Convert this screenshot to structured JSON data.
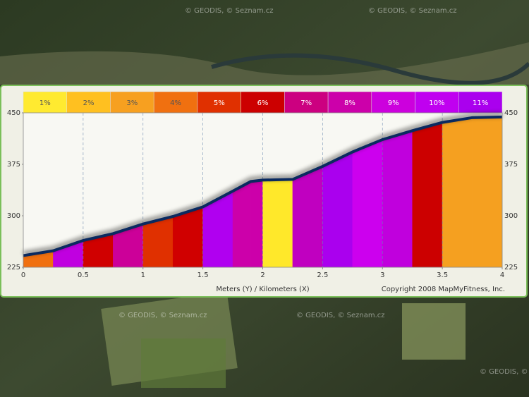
{
  "map": {
    "watermarks": [
      "© GEODIS, © Seznam.cz",
      "© GEODIS, © Seznam.cz",
      "© GEODIS, © Seznam.cz",
      "© GEODIS, © Seznam.cz",
      "© GEODIS, © Seznam.cz"
    ]
  },
  "chart_data": {
    "type": "profile",
    "x_label": "Meters (Y) / Kilometers (X)",
    "copyright": "Copyright 2008 MapMyFitness, Inc.",
    "grade_legend": {
      "labels": [
        "1%",
        "2%",
        "3%",
        "4%",
        "5%",
        "6%",
        "7%",
        "8%",
        "9%",
        "10%",
        "11%"
      ],
      "colors": [
        "#ffea30",
        "#ffc020",
        "#f7a020",
        "#f07010",
        "#e03000",
        "#cc0000",
        "#cc0080",
        "#cc00aa",
        "#cc00dd",
        "#c000f0",
        "#aa00ee"
      ]
    },
    "x": [
      0,
      0.25,
      0.5,
      0.75,
      1,
      1.25,
      1.5,
      1.75,
      1.9,
      2,
      2.25,
      2.5,
      2.75,
      3,
      3.25,
      3.5,
      3.75,
      4
    ],
    "values": [
      242,
      249,
      264,
      274,
      288,
      299,
      313,
      336,
      350,
      352,
      353,
      372,
      393,
      411,
      424,
      436,
      443,
      444
    ],
    "segment_colors": [
      "#f07010",
      "#c000e0",
      "#d00000",
      "#cc0099",
      "#e03000",
      "#d00000",
      "#b000f0",
      "#cc00aa",
      "#cc00aa",
      "#ffe82a",
      "#c000c0",
      "#aa00ee",
      "#cc00ee",
      "#c000dd",
      "#cc0000",
      "#f5a020",
      "#f5a020"
    ],
    "line_color": "#0a2a60",
    "xlim": [
      0,
      4
    ],
    "xticks": [
      0,
      0.5,
      1,
      1.5,
      2,
      2.5,
      3,
      3.5,
      4
    ],
    "ylim": [
      225,
      450
    ],
    "yticks": [
      225,
      300,
      375,
      450
    ],
    "grid": true
  }
}
